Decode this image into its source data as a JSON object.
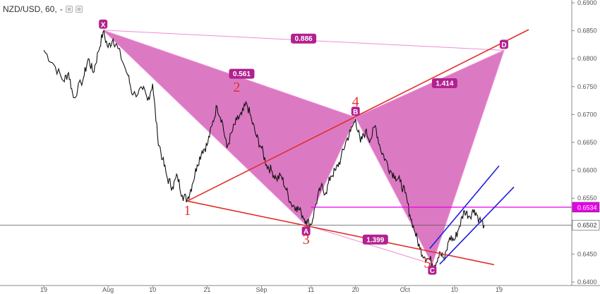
{
  "header": {
    "symbol_label": "NZD/USD, 60,",
    "dash": "-",
    "eye_icon": "eye-icon",
    "settings_icon": "settings-icon"
  },
  "chart_data": {
    "type": "line",
    "instrument": "NZD/USD",
    "timeframe": "60",
    "x_axis": {
      "range_days": [
        0,
        107
      ],
      "ticks": [
        {
          "label": "19",
          "day": 0
        },
        {
          "label": "Aug",
          "day": 13
        },
        {
          "label": "10",
          "day": 22
        },
        {
          "label": "21",
          "day": 33
        },
        {
          "label": "Sep",
          "day": 44
        },
        {
          "label": "11",
          "day": 54
        },
        {
          "label": "20",
          "day": 63
        },
        {
          "label": "Oct",
          "day": 73
        },
        {
          "label": "10",
          "day": 83
        },
        {
          "label": "19",
          "day": 92
        }
      ]
    },
    "y_axis": {
      "range": [
        0.6398,
        0.691
      ],
      "ticks": [
        "0.6400",
        "0.6450",
        "0.6500",
        "0.6550",
        "0.6600",
        "0.6650",
        "0.6700",
        "0.6750",
        "0.6800",
        "0.6850",
        "0.6900"
      ],
      "tick_values": [
        0.64,
        0.645,
        0.65,
        0.655,
        0.66,
        0.665,
        0.67,
        0.675,
        0.68,
        0.685,
        0.69
      ]
    },
    "price_points": [
      [
        0,
        0.6815
      ],
      [
        2,
        0.679
      ],
      [
        4,
        0.676
      ],
      [
        5,
        0.6775
      ],
      [
        6,
        0.673
      ],
      [
        8,
        0.6765
      ],
      [
        9,
        0.68
      ],
      [
        10,
        0.6775
      ],
      [
        11,
        0.6812
      ],
      [
        12,
        0.6848
      ],
      [
        13,
        0.682
      ],
      [
        14,
        0.6835
      ],
      [
        15,
        0.6818
      ],
      [
        17,
        0.677
      ],
      [
        18,
        0.6735
      ],
      [
        20,
        0.6745
      ],
      [
        21,
        0.6725
      ],
      [
        22,
        0.6755
      ],
      [
        23,
        0.666
      ],
      [
        24,
        0.662
      ],
      [
        25,
        0.6585
      ],
      [
        26,
        0.657
      ],
      [
        27,
        0.659
      ],
      [
        28,
        0.6555
      ],
      [
        29,
        0.6548
      ],
      [
        30,
        0.6575
      ],
      [
        31,
        0.661
      ],
      [
        32,
        0.6635
      ],
      [
        33,
        0.6645
      ],
      [
        34,
        0.668
      ],
      [
        35,
        0.6715
      ],
      [
        36,
        0.669
      ],
      [
        37,
        0.664
      ],
      [
        38,
        0.6668
      ],
      [
        39,
        0.669
      ],
      [
        40,
        0.67
      ],
      [
        41,
        0.672
      ],
      [
        42,
        0.669
      ],
      [
        43,
        0.666
      ],
      [
        44,
        0.664
      ],
      [
        45,
        0.661
      ],
      [
        46,
        0.66
      ],
      [
        47,
        0.6585
      ],
      [
        48,
        0.659
      ],
      [
        49,
        0.6565
      ],
      [
        50,
        0.654
      ],
      [
        51,
        0.6535
      ],
      [
        52,
        0.6525
      ],
      [
        53,
        0.651
      ],
      [
        54,
        0.6502
      ],
      [
        55,
        0.654
      ],
      [
        56,
        0.657
      ],
      [
        57,
        0.656
      ],
      [
        58,
        0.659
      ],
      [
        59,
        0.66
      ],
      [
        60,
        0.662
      ],
      [
        61,
        0.665
      ],
      [
        62,
        0.667
      ],
      [
        63,
        0.6692
      ],
      [
        64,
        0.665
      ],
      [
        65,
        0.667
      ],
      [
        66,
        0.6655
      ],
      [
        67,
        0.668
      ],
      [
        68,
        0.664
      ],
      [
        69,
        0.662
      ],
      [
        70,
        0.66
      ],
      [
        71,
        0.659
      ],
      [
        72,
        0.658
      ],
      [
        73,
        0.656
      ],
      [
        74,
        0.652
      ],
      [
        75,
        0.649
      ],
      [
        76,
        0.646
      ],
      [
        77,
        0.6445
      ],
      [
        78,
        0.644
      ],
      [
        79,
        0.643
      ],
      [
        80,
        0.6455
      ],
      [
        81,
        0.644
      ],
      [
        82,
        0.648
      ],
      [
        83,
        0.6475
      ],
      [
        84,
        0.65
      ],
      [
        85,
        0.6528
      ],
      [
        86,
        0.6518
      ],
      [
        87,
        0.653
      ],
      [
        88,
        0.6512
      ],
      [
        89,
        0.6502
      ]
    ],
    "harmonic_pattern": {
      "points": [
        {
          "label": "X",
          "day": 12,
          "price": 0.6851
        },
        {
          "label": "A",
          "day": 53,
          "price": 0.6502
        },
        {
          "label": "B",
          "day": 63,
          "price": 0.6695
        },
        {
          "label": "C",
          "day": 78.5,
          "price": 0.6432
        },
        {
          "label": "D",
          "day": 93,
          "price": 0.6815
        }
      ],
      "ratios": [
        {
          "label": "0.886",
          "day": 52.5,
          "price": 0.6836
        },
        {
          "label": "0.561",
          "day": 40,
          "price": 0.6773
        },
        {
          "label": "1.414",
          "day": 81,
          "price": 0.6756
        },
        {
          "label": "1.399",
          "day": 67,
          "price": 0.6476
        }
      ]
    },
    "wave_labels": [
      {
        "label": "1",
        "day": 29,
        "price": 0.652
      },
      {
        "label": "2",
        "day": 39,
        "price": 0.6741
      },
      {
        "label": "3",
        "day": 53,
        "price": 0.6468
      },
      {
        "label": "4",
        "day": 63,
        "price": 0.6715
      },
      {
        "label": "5",
        "day": 77.5,
        "price": 0.6426
      }
    ],
    "trend_lines": [
      {
        "name": "red-upper",
        "color": "#e0302a",
        "from": {
          "day": 29,
          "price": 0.6545
        },
        "to": {
          "day": 98,
          "price": 0.6852
        }
      },
      {
        "name": "red-lower",
        "color": "#e0302a",
        "from": {
          "day": 29,
          "price": 0.6545
        },
        "to": {
          "day": 91,
          "price": 0.6431
        }
      },
      {
        "name": "blue-upper",
        "color": "#1f1fe0",
        "from": {
          "day": 78,
          "price": 0.646
        },
        "to": {
          "day": 92,
          "price": 0.6608
        }
      },
      {
        "name": "blue-lower",
        "color": "#1f1fe0",
        "from": {
          "day": 80,
          "price": 0.6432
        },
        "to": {
          "day": 95,
          "price": 0.657
        }
      }
    ],
    "horizontal_line": {
      "price": 0.6534,
      "from_day": 54,
      "color": "#e600e6"
    },
    "current_price_line": {
      "price": 0.6502,
      "color": "#555555"
    },
    "price_badges": [
      {
        "label": "0.6534",
        "price": 0.6534,
        "bg": "#e600e6",
        "fg": "#ffffff"
      },
      {
        "label": "0.6502",
        "price": 0.6502,
        "bg": "#ffffff",
        "fg": "#333333"
      }
    ],
    "colors": {
      "pattern_fill": "#d45cb6",
      "pattern_badge": "#b2218f",
      "ratio_line": "#ec8ed6",
      "price_line": "#111111"
    }
  }
}
